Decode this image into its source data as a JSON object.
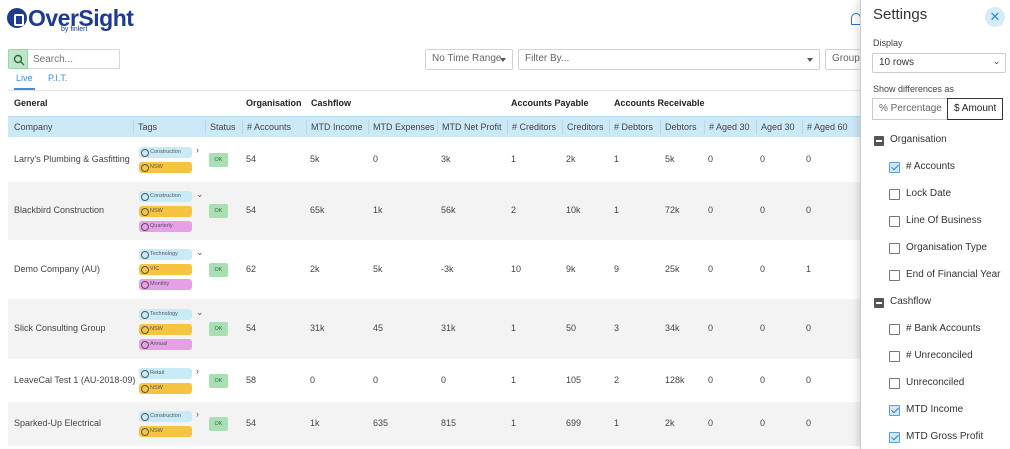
{
  "brand": {
    "name": "OverSight",
    "byline": "by finlert"
  },
  "search": {
    "placeholder": "Search..."
  },
  "filters": {
    "time_range": "No Time Range",
    "filter_by": "Filter By...",
    "group": "Group"
  },
  "tabs": [
    "Live",
    "P.I.T."
  ],
  "groups": [
    "General",
    "Organisation",
    "Cashflow",
    "Accounts Payable",
    "Accounts Receivable"
  ],
  "columns": [
    "Company",
    "Tags",
    "Status",
    "# Accounts",
    "MTD Income",
    "MTD Expenses",
    "MTD Net Profit",
    "# Creditors",
    "Creditors",
    "# Debtors",
    "Debtors",
    "# Aged 30",
    "Aged 30",
    "# Aged 60"
  ],
  "rows": [
    {
      "company": "Larry's Plumbing & Gasfitting",
      "tags": [
        "Construction",
        "NSW"
      ],
      "status": "OK",
      "vals": [
        "54",
        "5k",
        "0",
        "3k",
        "1",
        "2k",
        "1",
        "5k",
        "0",
        "0",
        "0"
      ]
    },
    {
      "company": "Blackbird Construction",
      "tags": [
        "Construction",
        "NSW",
        "Quarterly"
      ],
      "status": "OK",
      "vals": [
        "54",
        "65k",
        "1k",
        "56k",
        "2",
        "10k",
        "1",
        "72k",
        "0",
        "0",
        "0"
      ]
    },
    {
      "company": "Demo Company (AU)",
      "tags": [
        "Technology",
        "VIC",
        "Monthly"
      ],
      "status": "OK",
      "vals": [
        "62",
        "2k",
        "5k",
        "-3k",
        "10",
        "9k",
        "9",
        "25k",
        "0",
        "0",
        "1"
      ]
    },
    {
      "company": "Slick Consulting Group",
      "tags": [
        "Technology",
        "NSW",
        "Annual"
      ],
      "status": "OK",
      "vals": [
        "54",
        "31k",
        "45",
        "31k",
        "1",
        "50",
        "3",
        "34k",
        "0",
        "0",
        "0"
      ]
    },
    {
      "company": "LeaveCal Test 1 (AU-2018-09)",
      "tags": [
        "Retail",
        "NSW"
      ],
      "status": "OK",
      "vals": [
        "58",
        "0",
        "0",
        "0",
        "1",
        "105",
        "2",
        "128k",
        "0",
        "0",
        "0"
      ]
    },
    {
      "company": "Sparked-Up Electrical",
      "tags": [
        "Construction",
        "NSW"
      ],
      "status": "OK",
      "vals": [
        "54",
        "1k",
        "635",
        "815",
        "1",
        "699",
        "1",
        "2k",
        "0",
        "0",
        "0"
      ]
    }
  ],
  "settings": {
    "title": "Settings",
    "display_label": "Display",
    "display_value": "10 rows",
    "diff_label": "Show differences as",
    "diff_options": [
      "% Percentage",
      "$ Amount"
    ],
    "sections": [
      {
        "name": "Organisation",
        "options": [
          {
            "label": "# Accounts",
            "checked": true
          },
          {
            "label": "Lock Date",
            "checked": false
          },
          {
            "label": "Line Of Business",
            "checked": false
          },
          {
            "label": "Organisation Type",
            "checked": false
          },
          {
            "label": "End of Financial Year",
            "checked": false
          }
        ]
      },
      {
        "name": "Cashflow",
        "options": [
          {
            "label": "# Bank Accounts",
            "checked": false
          },
          {
            "label": "# Unreconciled",
            "checked": false
          },
          {
            "label": "Unreconciled",
            "checked": false
          },
          {
            "label": "MTD Income",
            "checked": true
          },
          {
            "label": "MTD Gross Profit",
            "checked": true
          }
        ]
      }
    ]
  },
  "colors": {
    "brand": "#1f3a93",
    "header_bg": "#cce9f8",
    "ok": "#a9dfb3",
    "tag_industry": "#c7ecf7",
    "tag_location": "#f6c440",
    "tag_period": "#e7a0e8"
  }
}
